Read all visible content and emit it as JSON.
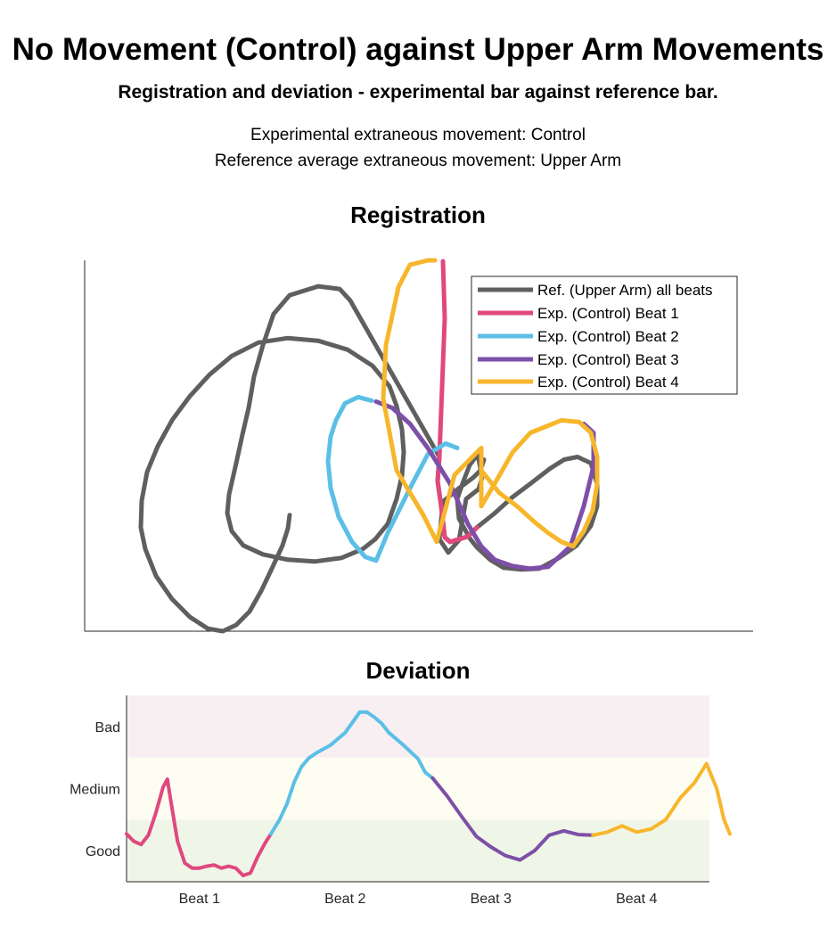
{
  "header": {
    "title": "No Movement (Control) against Upper Arm Movements",
    "subtitle": "Registration and deviation - experimental bar against reference bar.",
    "experimental_line": "Experimental extraneous movement: Control",
    "reference_line": "Reference average extraneous movement: Upper Arm"
  },
  "colors": {
    "reference": "#5f5f5f",
    "beat1": "#e0487e",
    "beat2": "#5bbfe6",
    "beat3": "#7d4fa8",
    "beat4": "#f7b62b",
    "band_bad": "#f8eff2",
    "band_medium": "#fefdf1",
    "band_good": "#eff6e8"
  },
  "chart_data": [
    {
      "type": "line",
      "title": "Registration",
      "axes_ticks": false,
      "grid": false,
      "legend_position": "top-right",
      "xlim": [
        0,
        750
      ],
      "ylim": [
        0,
        415
      ],
      "series": [
        {
          "name": "Ref. (Upper Arm) all beats",
          "color_key": "reference",
          "points": [
            [
              230,
              130
            ],
            [
              228,
              115
            ],
            [
              222,
              96
            ],
            [
              210,
              70
            ],
            [
              198,
              45
            ],
            [
              185,
              22
            ],
            [
              170,
              7
            ],
            [
              155,
              0
            ],
            [
              138,
              3
            ],
            [
              118,
              16
            ],
            [
              98,
              36
            ],
            [
              80,
              62
            ],
            [
              68,
              92
            ],
            [
              63,
              116
            ],
            [
              64,
              146
            ],
            [
              70,
              178
            ],
            [
              82,
              207
            ],
            [
              98,
              236
            ],
            [
              118,
              263
            ],
            [
              140,
              287
            ],
            [
              165,
              308
            ],
            [
              195,
              323
            ],
            [
              228,
              328
            ],
            [
              262,
              325
            ],
            [
              295,
              315
            ],
            [
              323,
              297
            ],
            [
              342,
              274
            ],
            [
              350,
              252
            ],
            [
              356,
              226
            ],
            [
              358,
              200
            ],
            [
              356,
              174
            ],
            [
              350,
              148
            ],
            [
              340,
              120
            ],
            [
              326,
              103
            ],
            [
              312,
              92
            ],
            [
              288,
              82
            ],
            [
              258,
              78
            ],
            [
              228,
              80
            ],
            [
              200,
              86
            ],
            [
              178,
              96
            ],
            [
              165,
              112
            ],
            [
              160,
              132
            ],
            [
              162,
              153
            ],
            [
              170,
              188
            ],
            [
              177,
              220
            ],
            [
              184,
              250
            ],
            [
              190,
              285
            ],
            [
              200,
              320
            ],
            [
              212,
              355
            ],
            [
              230,
              376
            ],
            [
              262,
              386
            ],
            [
              286,
              383
            ],
            [
              298,
              370
            ],
            [
              398,
              195
            ],
            [
              396,
              168
            ],
            [
              400,
              140
            ],
            [
              404,
              105
            ],
            [
              410,
              100
            ],
            [
              420,
              103
            ],
            [
              430,
              106
            ],
            [
              440,
              116
            ],
            [
              460,
              132
            ],
            [
              480,
              150
            ],
            [
              500,
              165
            ],
            [
              522,
              182
            ],
            [
              538,
              192
            ],
            [
              553,
              195
            ],
            [
              568,
              188
            ],
            [
              575,
              165
            ],
            [
              575,
              140
            ],
            [
              568,
              118
            ],
            [
              552,
              96
            ],
            [
              532,
              82
            ],
            [
              510,
              70
            ],
            [
              490,
              69
            ],
            [
              470,
              71
            ],
            [
              455,
              80
            ],
            [
              440,
              94
            ],
            [
              432,
              104
            ],
            [
              420,
              126
            ],
            [
              418,
              148
            ],
            [
              425,
              168
            ],
            [
              432,
              186
            ],
            [
              441,
              198
            ],
            [
              446,
              172
            ],
            [
              442,
              159
            ],
            [
              428,
              148
            ],
            [
              420,
              102
            ],
            [
              408,
              88
            ],
            [
              398,
              103
            ],
            [
              402,
              145
            ],
            [
              420,
              160
            ],
            [
              436,
              172
            ],
            [
              444,
              180
            ],
            [
              448,
              192
            ]
          ]
        },
        {
          "name": "Exp. (Control) Beat 1",
          "color_key": "beat1",
          "points": [
            [
              402,
              414
            ],
            [
              404,
              350
            ],
            [
              398,
              195
            ],
            [
              396,
              168
            ],
            [
              400,
              140
            ],
            [
              404,
              105
            ],
            [
              410,
              100
            ],
            [
              420,
              103
            ],
            [
              430,
              106
            ],
            [
              440,
              116
            ]
          ]
        },
        {
          "name": "Exp. (Control) Beat 2",
          "color_key": "beat2",
          "points": [
            [
              322,
              258
            ],
            [
              307,
              262
            ],
            [
              292,
              255
            ],
            [
              282,
              236
            ],
            [
              276,
              218
            ],
            [
              273,
              190
            ],
            [
              276,
              160
            ],
            [
              285,
              128
            ],
            [
              300,
              100
            ],
            [
              315,
              83
            ],
            [
              327,
              79
            ],
            [
              340,
              110
            ],
            [
              365,
              160
            ],
            [
              385,
              198
            ],
            [
              405,
              210
            ],
            [
              418,
              205
            ]
          ]
        },
        {
          "name": "Exp. (Control) Beat 3",
          "color_key": "beat3",
          "points": [
            [
              327,
              257
            ],
            [
              345,
              250
            ],
            [
              365,
              232
            ],
            [
              385,
              205
            ],
            [
              410,
              165
            ],
            [
              430,
              120
            ],
            [
              445,
              95
            ],
            [
              460,
              80
            ],
            [
              480,
              73
            ],
            [
              500,
              70
            ],
            [
              520,
              72
            ],
            [
              545,
              95
            ],
            [
              560,
              140
            ],
            [
              571,
              185
            ],
            [
              571,
              222
            ],
            [
              560,
              232
            ]
          ]
        },
        {
          "name": "Exp. (Control) Beat 4",
          "color_key": "beat4",
          "points": [
            [
              445,
              180
            ],
            [
              465,
              155
            ],
            [
              485,
              140
            ],
            [
              505,
              122
            ],
            [
              520,
              110
            ],
            [
              535,
              100
            ],
            [
              548,
              95
            ],
            [
              560,
              112
            ],
            [
              570,
              135
            ],
            [
              575,
              165
            ],
            [
              575,
              195
            ],
            [
              568,
              222
            ],
            [
              555,
              234
            ],
            [
              535,
              236
            ],
            [
              500,
              222
            ],
            [
              480,
              200
            ],
            [
              460,
              165
            ],
            [
              445,
              140
            ],
            [
              445,
              205
            ],
            [
              415,
              175
            ],
            [
              395,
              100
            ],
            [
              380,
              130
            ],
            [
              350,
              180
            ],
            [
              335,
              260
            ],
            [
              338,
              320
            ],
            [
              352,
              385
            ],
            [
              365,
              410
            ],
            [
              385,
              415
            ],
            [
              393,
              415
            ]
          ]
        }
      ]
    },
    {
      "type": "line",
      "title": "Deviation",
      "categories": [
        "Beat 1",
        "Beat 2",
        "Beat 3",
        "Beat 4"
      ],
      "y_ticks": [
        "Good",
        "Medium",
        "Bad"
      ],
      "xlim": [
        0,
        4
      ],
      "ylim": [
        0,
        3
      ],
      "bands": [
        {
          "name": "Good",
          "from": 0,
          "to": 1,
          "color_key": "band_good"
        },
        {
          "name": "Medium",
          "from": 1,
          "to": 2,
          "color_key": "band_medium"
        },
        {
          "name": "Bad",
          "from": 2,
          "to": 3,
          "color_key": "band_bad"
        }
      ],
      "series": [
        {
          "color_key": "beat1",
          "points": [
            [
              0,
              0.77
            ],
            [
              0.05,
              0.65
            ],
            [
              0.1,
              0.6
            ],
            [
              0.15,
              0.75
            ],
            [
              0.2,
              1.1
            ],
            [
              0.25,
              1.52
            ],
            [
              0.28,
              1.65
            ],
            [
              0.3,
              1.35
            ],
            [
              0.35,
              0.65
            ],
            [
              0.4,
              0.3
            ],
            [
              0.45,
              0.22
            ],
            [
              0.5,
              0.22
            ],
            [
              0.55,
              0.25
            ],
            [
              0.6,
              0.27
            ],
            [
              0.65,
              0.22
            ],
            [
              0.7,
              0.25
            ],
            [
              0.75,
              0.22
            ],
            [
              0.8,
              0.1
            ],
            [
              0.85,
              0.14
            ],
            [
              0.9,
              0.4
            ],
            [
              0.95,
              0.62
            ],
            [
              0.99,
              0.77
            ]
          ]
        },
        {
          "color_key": "beat2",
          "points": [
            [
              0.99,
              0.77
            ],
            [
              1.05,
              1.0
            ],
            [
              1.1,
              1.25
            ],
            [
              1.15,
              1.6
            ],
            [
              1.2,
              1.85
            ],
            [
              1.25,
              1.99
            ],
            [
              1.3,
              2.07
            ],
            [
              1.4,
              2.2
            ],
            [
              1.5,
              2.4
            ],
            [
              1.6,
              2.73
            ],
            [
              1.65,
              2.73
            ],
            [
              1.7,
              2.65
            ],
            [
              1.75,
              2.55
            ],
            [
              1.8,
              2.4
            ],
            [
              1.9,
              2.2
            ],
            [
              2.0,
              1.98
            ],
            [
              2.05,
              1.76
            ],
            [
              2.1,
              1.67
            ]
          ]
        },
        {
          "color_key": "beat3",
          "points": [
            [
              2.1,
              1.67
            ],
            [
              2.2,
              1.38
            ],
            [
              2.3,
              1.05
            ],
            [
              2.4,
              0.73
            ],
            [
              2.5,
              0.56
            ],
            [
              2.6,
              0.42
            ],
            [
              2.7,
              0.35
            ],
            [
              2.8,
              0.5
            ],
            [
              2.9,
              0.75
            ],
            [
              3.0,
              0.82
            ],
            [
              3.1,
              0.76
            ],
            [
              3.2,
              0.75
            ]
          ]
        },
        {
          "color_key": "beat4",
          "points": [
            [
              3.2,
              0.75
            ],
            [
              3.3,
              0.8
            ],
            [
              3.4,
              0.9
            ],
            [
              3.5,
              0.8
            ],
            [
              3.6,
              0.85
            ],
            [
              3.7,
              1.0
            ],
            [
              3.8,
              1.35
            ],
            [
              3.9,
              1.6
            ],
            [
              3.98,
              1.9
            ],
            [
              4.05,
              1.5
            ],
            [
              4.1,
              1.0
            ],
            [
              4.14,
              0.77
            ]
          ]
        }
      ]
    }
  ]
}
